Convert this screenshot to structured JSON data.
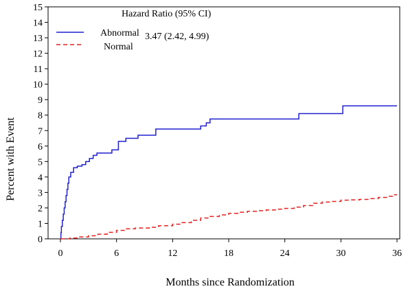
{
  "chart_data": {
    "type": "line",
    "title": "",
    "xlabel": "Months since Randomization",
    "ylabel": "Percent with Event",
    "xlim": [
      0,
      36
    ],
    "ylim": [
      0,
      15
    ],
    "x_ticks": [
      "0",
      "6",
      "12",
      "18",
      "24",
      "30",
      "36"
    ],
    "y_ticks": [
      "0",
      "1",
      "2",
      "3",
      "4",
      "5",
      "6",
      "7",
      "8",
      "9",
      "10",
      "11",
      "12",
      "13",
      "14",
      "15"
    ],
    "grid": false,
    "legend_placement": "top-left",
    "hazard_ratio": {
      "header": "Hazard Ratio (95% CI)",
      "value": "3.47 (2.42, 4.99)"
    },
    "series": [
      {
        "name": "Abnormal",
        "color": "#1f1fd0",
        "style": "solid",
        "step": true,
        "points": [
          [
            0,
            0
          ],
          [
            0.05,
            0.4
          ],
          [
            0.1,
            0.8
          ],
          [
            0.2,
            1.2
          ],
          [
            0.3,
            1.6
          ],
          [
            0.4,
            2.0
          ],
          [
            0.5,
            2.4
          ],
          [
            0.6,
            2.8
          ],
          [
            0.7,
            3.2
          ],
          [
            0.8,
            3.6
          ],
          [
            0.9,
            4.0
          ],
          [
            1.1,
            4.3
          ],
          [
            1.4,
            4.6
          ],
          [
            1.8,
            4.7
          ],
          [
            2.3,
            4.8
          ],
          [
            2.7,
            5.0
          ],
          [
            3.1,
            5.2
          ],
          [
            3.5,
            5.4
          ],
          [
            3.9,
            5.55
          ],
          [
            5.5,
            5.75
          ],
          [
            6.2,
            6.3
          ],
          [
            7.0,
            6.5
          ],
          [
            8.3,
            6.7
          ],
          [
            10.2,
            7.1
          ],
          [
            15.0,
            7.3
          ],
          [
            15.6,
            7.5
          ],
          [
            16.0,
            7.75
          ],
          [
            25.5,
            8.1
          ],
          [
            30.2,
            8.6
          ],
          [
            36,
            8.6
          ]
        ]
      },
      {
        "name": "Normal",
        "color": "#e81e1e",
        "style": "dashed",
        "step": true,
        "points": [
          [
            0,
            0
          ],
          [
            1,
            0.05
          ],
          [
            2,
            0.12
          ],
          [
            3,
            0.2
          ],
          [
            4,
            0.3
          ],
          [
            5,
            0.42
          ],
          [
            6,
            0.55
          ],
          [
            7,
            0.65
          ],
          [
            8,
            0.7
          ],
          [
            9.5,
            0.75
          ],
          [
            10.5,
            0.85
          ],
          [
            12,
            0.95
          ],
          [
            13,
            1.05
          ],
          [
            14,
            1.2
          ],
          [
            15,
            1.35
          ],
          [
            16,
            1.45
          ],
          [
            17,
            1.55
          ],
          [
            18,
            1.65
          ],
          [
            19,
            1.72
          ],
          [
            20,
            1.78
          ],
          [
            21,
            1.82
          ],
          [
            22,
            1.87
          ],
          [
            23,
            1.92
          ],
          [
            24,
            1.97
          ],
          [
            25,
            2.05
          ],
          [
            26,
            2.15
          ],
          [
            27,
            2.3
          ],
          [
            28,
            2.38
          ],
          [
            29,
            2.42
          ],
          [
            30,
            2.5
          ],
          [
            31,
            2.52
          ],
          [
            32,
            2.55
          ],
          [
            33,
            2.6
          ],
          [
            34,
            2.68
          ],
          [
            35,
            2.75
          ],
          [
            35.5,
            2.85
          ],
          [
            36,
            2.85
          ]
        ]
      }
    ]
  }
}
